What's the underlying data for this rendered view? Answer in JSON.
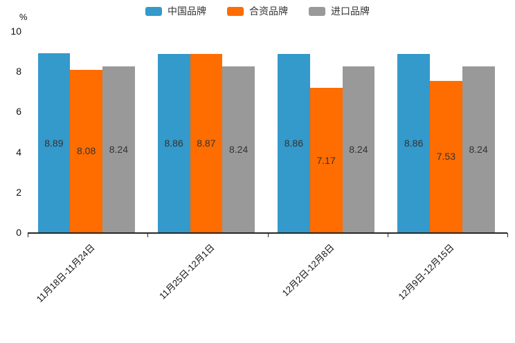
{
  "chart_data": {
    "type": "bar",
    "title": "",
    "ylabel": "%",
    "xlabel": "",
    "ylim": [
      0,
      10
    ],
    "yticks": [
      0,
      2,
      4,
      6,
      8,
      10
    ],
    "grid": false,
    "legend_position": "top-center",
    "value_labels": "inside-center",
    "categories": [
      "11月18日-11月24日",
      "11月25日-12月1日",
      "12月2日-12月8日",
      "12月9日-12月15日"
    ],
    "series": [
      {
        "name": "中国品牌",
        "color": "#3499cb",
        "values": [
          8.89,
          8.86,
          8.86,
          8.86
        ]
      },
      {
        "name": "合资品牌",
        "color": "#ff6c00",
        "values": [
          8.08,
          8.87,
          7.17,
          7.53
        ]
      },
      {
        "name": "进口品牌",
        "color": "#999999",
        "values": [
          8.24,
          8.24,
          8.24,
          8.24
        ]
      }
    ],
    "colors": {
      "axis_line": "#262626",
      "tick_label": "#111111",
      "value_label": "#333333",
      "background": "#ffffff"
    }
  }
}
